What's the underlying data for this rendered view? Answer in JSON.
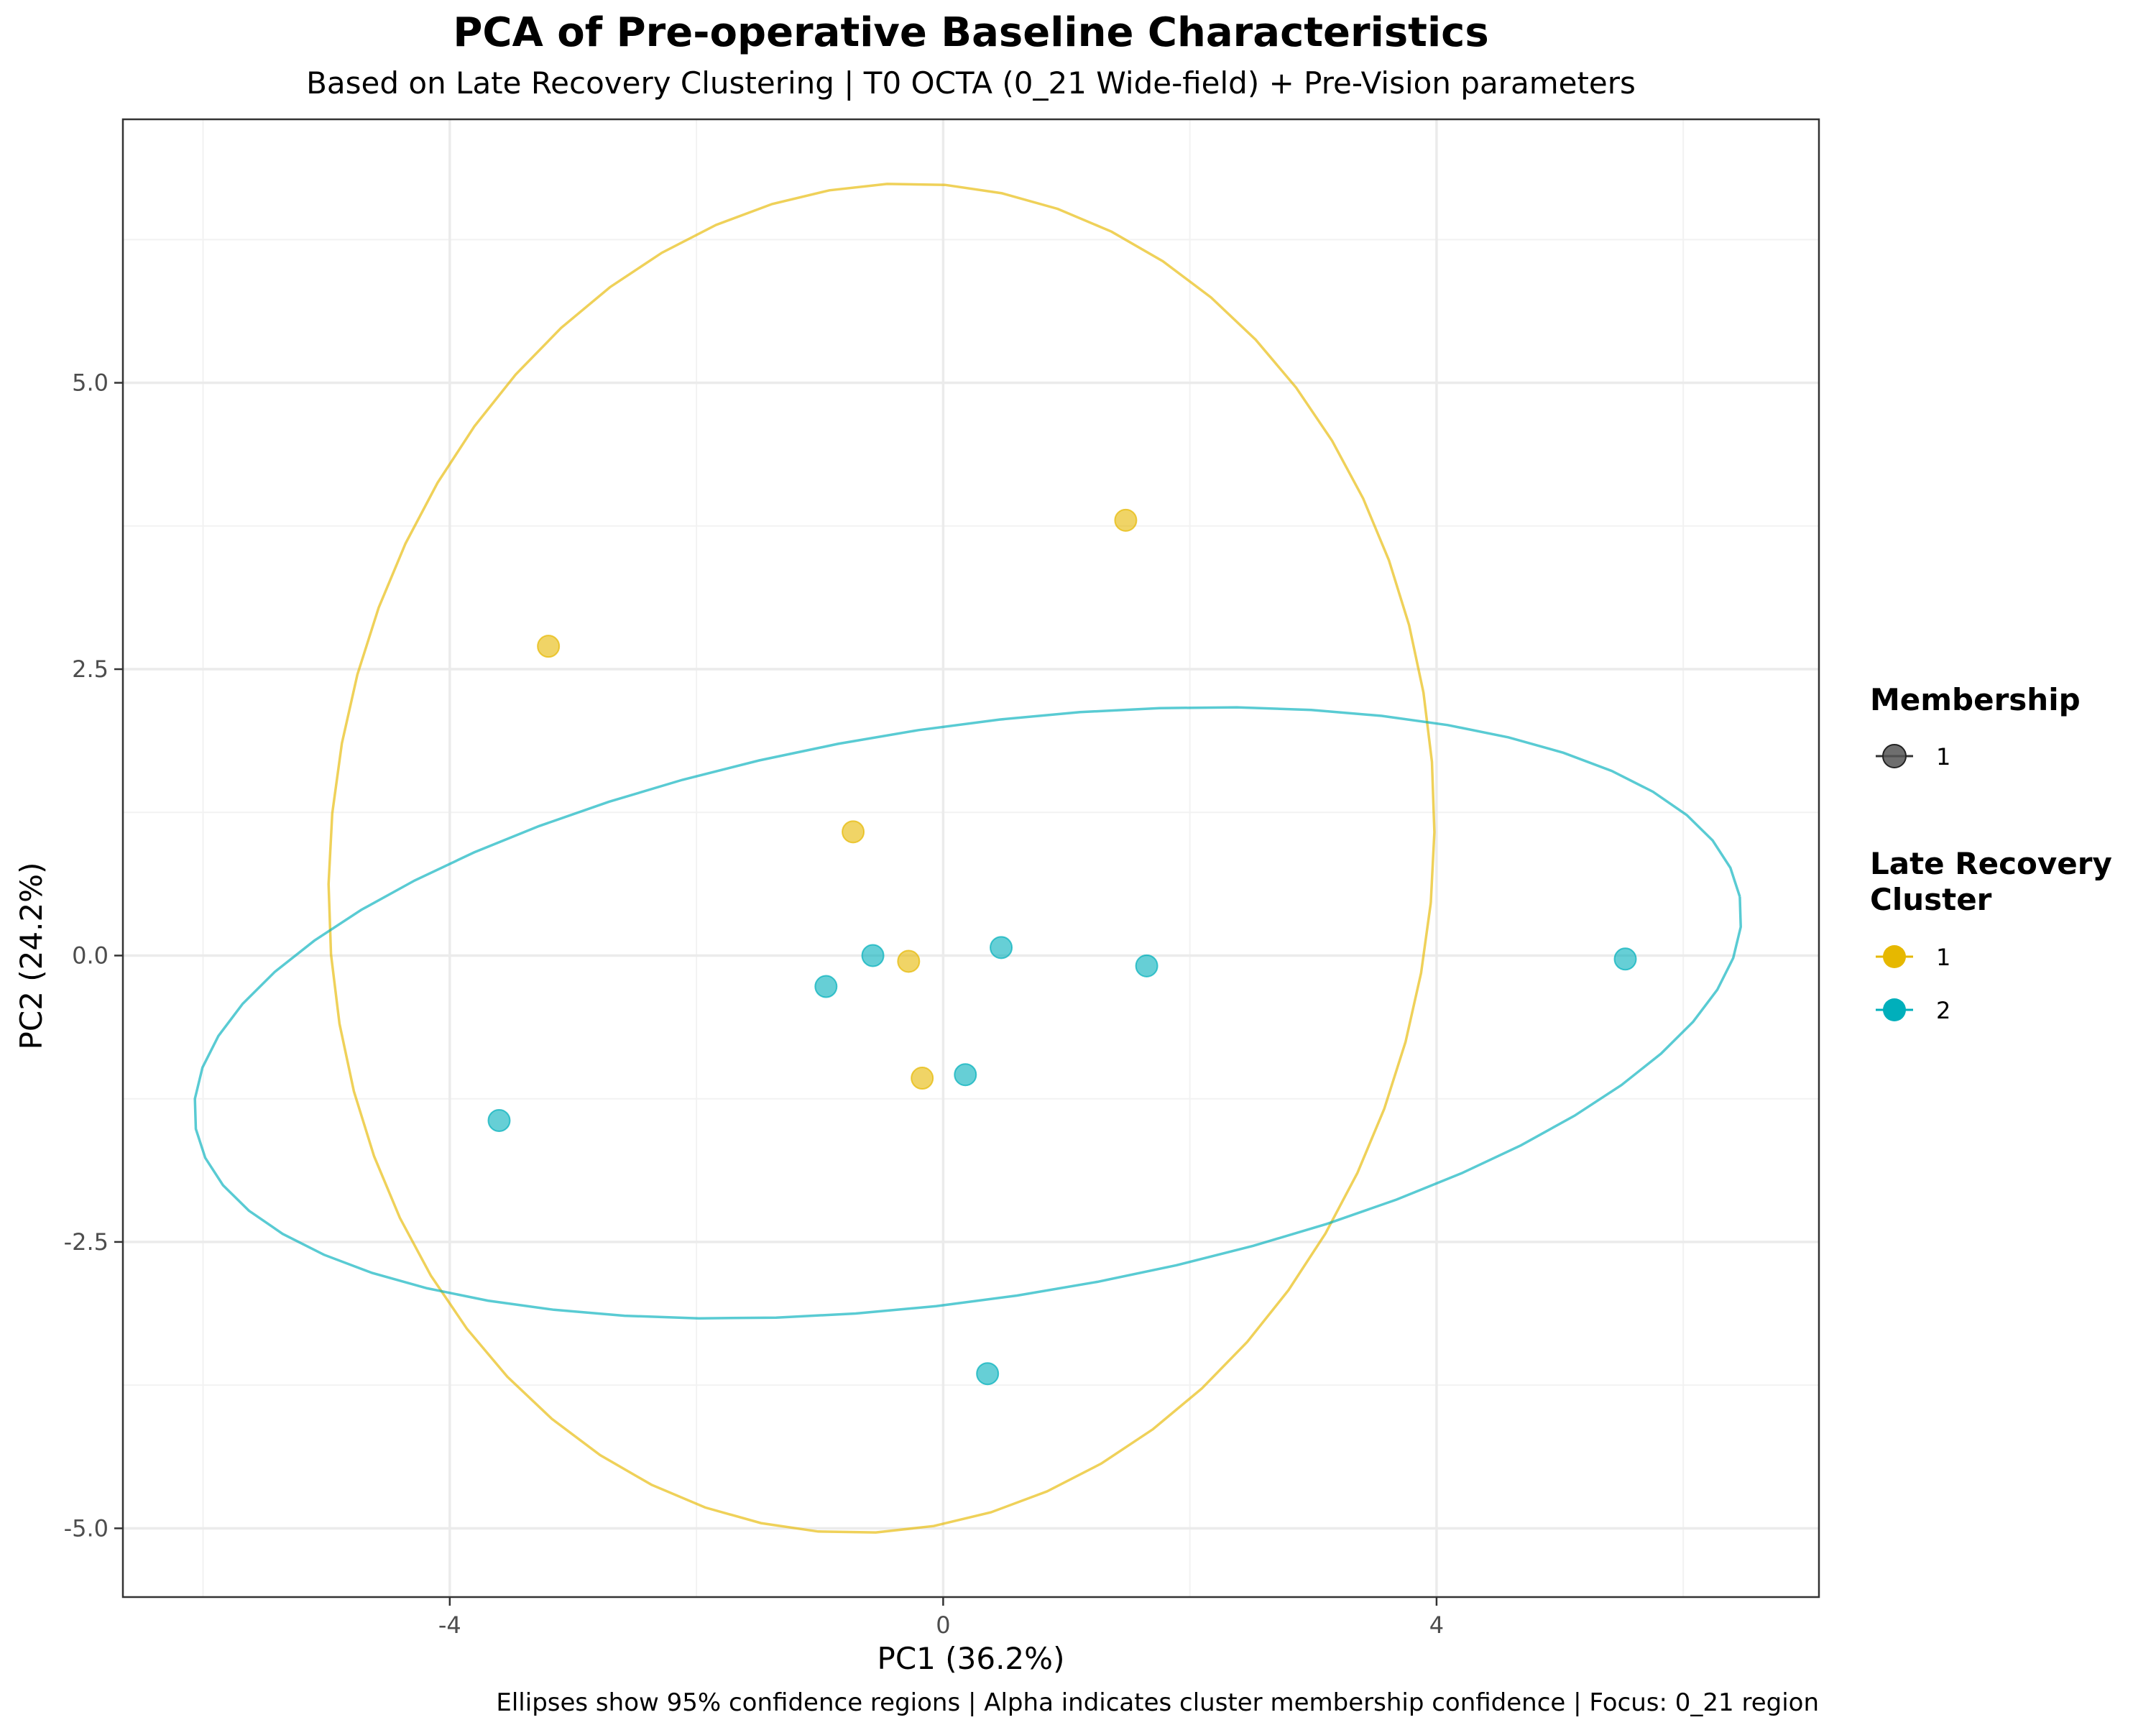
{
  "chart_data": {
    "type": "scatter",
    "title": "PCA of Pre-operative Baseline Characteristics",
    "subtitle": "Based on Late Recovery Clustering | T0 OCTA (0_21 Wide-field) + Pre-Vision parameters",
    "xlabel": "PC1 (36.2%)",
    "ylabel": "PC2 (24.2%)",
    "caption": "Ellipses show 95% confidence regions | Alpha indicates cluster membership confidence | Focus: 0_21 region",
    "xlim": [
      -6.65,
      7.1
    ],
    "ylim": [
      -5.6,
      7.3
    ],
    "x_ticks": [
      -4,
      0,
      4
    ],
    "x_tick_labels": [
      "-4",
      "0",
      "4"
    ],
    "y_ticks": [
      -5,
      -2.5,
      0,
      2.5,
      5
    ],
    "y_tick_labels": [
      "-5.0",
      "-2.5",
      "0.0",
      "2.5",
      "5.0"
    ],
    "grid": true,
    "legend_position": "right",
    "legend": {
      "membership": {
        "title": "Membership",
        "items": [
          "1"
        ],
        "color": "#555555"
      },
      "cluster": {
        "title_lines": [
          "Late Recovery",
          "Cluster"
        ],
        "items": [
          "1",
          "2"
        ]
      }
    },
    "series": [
      {
        "name": "1",
        "color": "#E6B800",
        "points": [
          {
            "x": 1.48,
            "y": 3.8
          },
          {
            "x": -3.2,
            "y": 2.7
          },
          {
            "x": -0.73,
            "y": 1.08
          },
          {
            "x": -0.28,
            "y": -0.05
          },
          {
            "x": -0.17,
            "y": -1.07
          }
        ],
        "ellipse": {
          "cx": -0.5,
          "cy": 0.85,
          "rx": 4.47,
          "ry": 5.9,
          "angle_deg": -5
        }
      },
      {
        "name": "2",
        "color": "#00AFBB",
        "points": [
          {
            "x": 5.53,
            "y": -0.03
          },
          {
            "x": -0.57,
            "y": 0.0
          },
          {
            "x": 0.47,
            "y": 0.07
          },
          {
            "x": 1.65,
            "y": -0.09
          },
          {
            "x": -0.95,
            "y": -0.27
          },
          {
            "x": 0.18,
            "y": -1.04
          },
          {
            "x": -3.6,
            "y": -1.44
          },
          {
            "x": 0.36,
            "y": -3.65
          }
        ],
        "ellipse": {
          "cx": 0.2,
          "cy": -0.5,
          "rx": 6.34,
          "ry": 2.5,
          "angle_deg": 9.2
        }
      }
    ]
  }
}
